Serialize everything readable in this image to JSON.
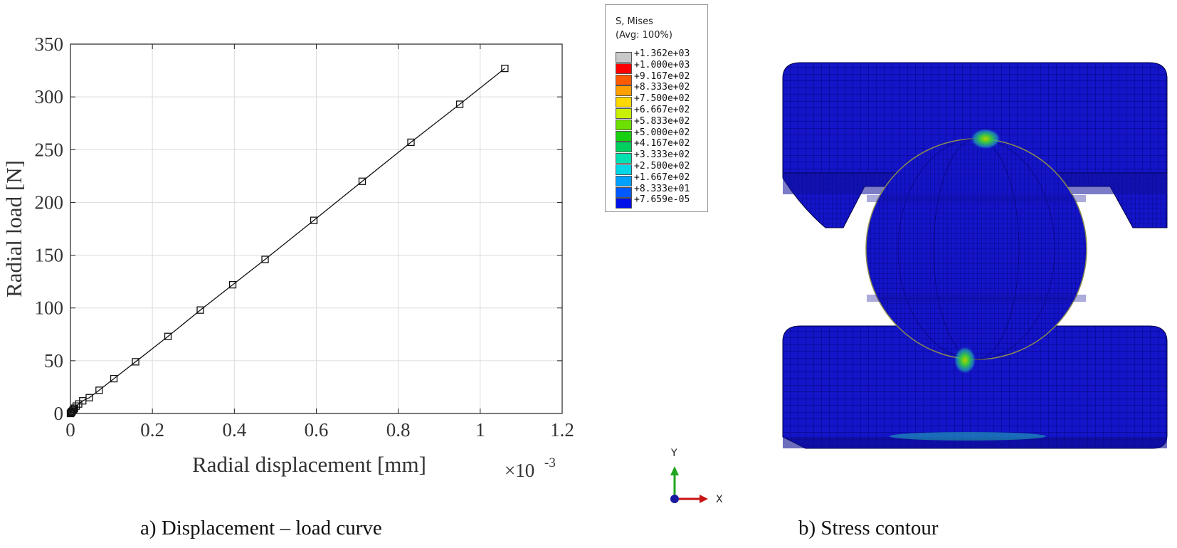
{
  "chart_data": {
    "type": "line",
    "xlabel": "Radial displacement [mm]",
    "ylabel": "Radial load [N]",
    "x_exponent_label": "×10",
    "x_exponent_power": "-3",
    "xlim": [
      0,
      1.2
    ],
    "ylim": [
      0,
      350
    ],
    "x_ticks": [
      "0",
      "0.2",
      "0.4",
      "0.6",
      "0.8",
      "1",
      "1.2"
    ],
    "y_ticks": [
      "0",
      "50",
      "100",
      "150",
      "200",
      "250",
      "300",
      "350"
    ],
    "grid": true,
    "marker": "square",
    "series": [
      {
        "x": [
          0,
          0.001,
          0.002,
          0.003,
          0.004,
          0.006,
          0.008,
          0.01,
          0.014,
          0.02,
          0.03,
          0.046,
          0.07,
          0.106,
          0.159,
          0.238,
          0.317,
          0.396,
          0.475,
          0.594,
          0.712,
          0.831,
          0.95,
          1.06
        ],
        "y": [
          0,
          0.5,
          1,
          1.5,
          2,
          3,
          4,
          5,
          7,
          9,
          12,
          15,
          22,
          33,
          49,
          73,
          98,
          122,
          146,
          183,
          220,
          257,
          293,
          327
        ]
      }
    ]
  },
  "legend": {
    "title_line1": "S, Mises",
    "title_line2": "(Avg: 100%)",
    "entries": [
      {
        "label": "+1.362e+03",
        "color": "#c8c8c8"
      },
      {
        "label": "+1.000e+03",
        "color": "#ff0000"
      },
      {
        "label": "+9.167e+02",
        "color": "#ff5a00"
      },
      {
        "label": "+8.333e+02",
        "color": "#ffa000"
      },
      {
        "label": "+7.500e+02",
        "color": "#ffd800"
      },
      {
        "label": "+6.667e+02",
        "color": "#c8f000"
      },
      {
        "label": "+5.833e+02",
        "color": "#6ee000"
      },
      {
        "label": "+5.000e+02",
        "color": "#18d010"
      },
      {
        "label": "+4.167e+02",
        "color": "#00d060"
      },
      {
        "label": "+3.333e+02",
        "color": "#00e0b0"
      },
      {
        "label": "+2.500e+02",
        "color": "#00d8e8"
      },
      {
        "label": "+1.667e+02",
        "color": "#00a0ff"
      },
      {
        "label": "+8.333e+01",
        "color": "#0058ff"
      },
      {
        "label": "+7.659e-05",
        "color": "#0010e8"
      }
    ]
  },
  "triad": {
    "y_label": "Y",
    "x_label": "X",
    "y_color": "#1fa51f",
    "x_color": "#c81414"
  },
  "captions": {
    "left": "a) Displacement – load curve",
    "right": "b) Stress contour"
  },
  "contour_colors": {
    "mesh_blue": "#1414c8",
    "mesh_line": "#000060",
    "hotspot_green": "#3cc83c",
    "hotspot_cyan": "#20b4b4"
  }
}
